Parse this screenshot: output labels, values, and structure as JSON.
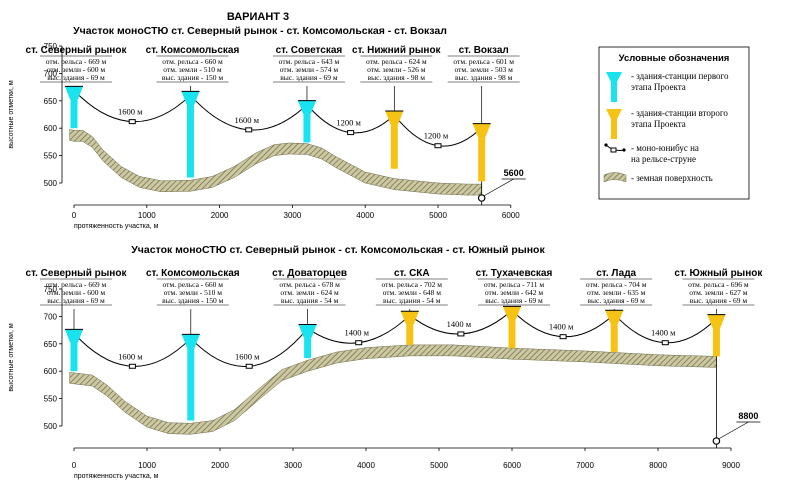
{
  "variant_title": "ВАРИАНТ 3",
  "legend": {
    "title": "Условные обозначения",
    "items": [
      {
        "kind": "tower-cyan",
        "lines": [
          "- здания-станции первого",
          "этапа Проекта"
        ]
      },
      {
        "kind": "tower-yellow",
        "lines": [
          "- здания-станции второго",
          "этапа Проекта"
        ]
      },
      {
        "kind": "cabin",
        "lines": [
          "- моно-юнибус на",
          "на рельсе-струне"
        ]
      },
      {
        "kind": "ground",
        "lines": [
          "- земная поверхность"
        ]
      }
    ]
  },
  "colors": {
    "stage1": "#19e3ee",
    "stage2": "#f6c214",
    "ground_fill": "#ccc8a2",
    "ground_edge": "#6e6a48"
  },
  "chart_data": [
    {
      "type": "diagram",
      "title": "Участок моноСТЮ ст. Северный рынок - ст. Комсомольская - ст. Вокзал",
      "ylabel": "высотные отметки, м",
      "xlabel": "протяженность участка, м",
      "y_ticks": [
        500,
        550,
        600,
        650,
        700,
        750
      ],
      "x_ticks": [
        0,
        1000,
        2000,
        3000,
        4000,
        5000,
        6000
      ],
      "ylim": [
        500,
        750
      ],
      "xlim": [
        0,
        6000
      ],
      "total_length": "5600",
      "total_length_m": 5600,
      "ground": [
        [
          -60,
          598
        ],
        [
          0,
          596
        ],
        [
          120,
          596
        ],
        [
          250,
          585
        ],
        [
          400,
          560
        ],
        [
          650,
          530
        ],
        [
          900,
          512
        ],
        [
          1200,
          504
        ],
        [
          1600,
          505
        ],
        [
          1900,
          512
        ],
        [
          2200,
          530
        ],
        [
          2500,
          555
        ],
        [
          2750,
          570
        ],
        [
          2950,
          573
        ],
        [
          3200,
          572
        ],
        [
          3400,
          564
        ],
        [
          3600,
          548
        ],
        [
          4000,
          520
        ],
        [
          4400,
          508
        ],
        [
          5000,
          500
        ],
        [
          5400,
          498
        ],
        [
          5600,
          498
        ]
      ],
      "stations": [
        {
          "name": "ст. Северный рынок",
          "x_m": 0,
          "rail": "отм. рельса - 669 м",
          "ground": "отм. земли - 600 м",
          "height": "выс. здания - 69 м",
          "rail_m": 669,
          "ground_m": 600,
          "stage": 1
        },
        {
          "name": "ст. Комсомольская",
          "x_m": 1600,
          "rail": "отм. рельса - 660 м",
          "ground": "отм. земли - 510 м",
          "height": "выс. здания - 150 м",
          "rail_m": 660,
          "ground_m": 510,
          "stage": 1
        },
        {
          "name": "ст. Советская",
          "x_m": 3200,
          "rail": "отм. рельса - 643 м",
          "ground": "отм. земли - 574 м",
          "height": "выс. здания - 69 м",
          "rail_m": 643,
          "ground_m": 574,
          "stage": 1
        },
        {
          "name": "ст. Нижний рынок",
          "x_m": 4400,
          "rail": "отм. рельса - 624 м",
          "ground": "отм. земли - 526 м",
          "height": "выс. здания - 98 м",
          "rail_m": 624,
          "ground_m": 526,
          "stage": 2
        },
        {
          "name": "ст. Вокзал",
          "x_m": 5600,
          "rail": "отм. рельса - 601 м",
          "ground": "отм. земли - 503 м",
          "height": "выс. здания - 98 м",
          "rail_m": 601,
          "ground_m": 503,
          "stage": 2
        }
      ],
      "spans": [
        {
          "label": "1600 м",
          "sag_m": 612
        },
        {
          "label": "1600 м",
          "sag_m": 597
        },
        {
          "label": "1200 м",
          "sag_m": 592
        },
        {
          "label": "1200 м",
          "sag_m": 568
        }
      ]
    },
    {
      "type": "diagram",
      "title": "Участок моноСТЮ ст. Северный рынок - ст. Комсомольская - ст. Южный рынок",
      "ylabel": "высотные отметки, м",
      "xlabel": "протяженность участка, м",
      "y_ticks": [
        500,
        550,
        600,
        650,
        700,
        750
      ],
      "x_ticks": [
        0,
        1000,
        2000,
        3000,
        4000,
        5000,
        6000,
        7000,
        8000,
        9000
      ],
      "ylim": [
        500,
        750
      ],
      "xlim": [
        0,
        9000
      ],
      "total_length": "8800",
      "total_length_m": 8800,
      "ground": [
        [
          -60,
          598
        ],
        [
          0,
          597
        ],
        [
          250,
          593
        ],
        [
          450,
          575
        ],
        [
          700,
          545
        ],
        [
          1000,
          518
        ],
        [
          1300,
          506
        ],
        [
          1600,
          505
        ],
        [
          1900,
          510
        ],
        [
          2200,
          530
        ],
        [
          2550,
          570
        ],
        [
          2850,
          603
        ],
        [
          3200,
          620
        ],
        [
          3600,
          635
        ],
        [
          4000,
          643
        ],
        [
          4600,
          648
        ],
        [
          5200,
          648
        ],
        [
          6000,
          642
        ],
        [
          7000,
          637
        ],
        [
          8000,
          630
        ],
        [
          8800,
          627
        ]
      ],
      "stations": [
        {
          "name": "ст. Северный рынок",
          "x_m": 0,
          "rail": "отм. рельса - 669 м",
          "ground": "отм. земли - 600 м",
          "height": "выс. здания - 69 м",
          "rail_m": 669,
          "ground_m": 600,
          "stage": 1
        },
        {
          "name": "ст. Комсомольская",
          "x_m": 1600,
          "rail": "отм. рельса - 660 м",
          "ground": "отм. земли - 510 м",
          "height": "выс. здания - 150 м",
          "rail_m": 660,
          "ground_m": 510,
          "stage": 1
        },
        {
          "name": "ст. Доваторцев",
          "x_m": 3200,
          "rail": "отм. рельса - 678 м",
          "ground": "отм. земли - 624 м",
          "height": "выс. здания - 54 м",
          "rail_m": 678,
          "ground_m": 624,
          "stage": 1
        },
        {
          "name": "ст. СКА",
          "x_m": 4600,
          "rail": "отм. рельса - 702 м",
          "ground": "отм. земли - 648 м",
          "height": "выс. здания - 54 м",
          "rail_m": 702,
          "ground_m": 648,
          "stage": 2
        },
        {
          "name": "ст. Тухачевская",
          "x_m": 6000,
          "rail": "отм. рельса - 711 м",
          "ground": "отм. земли - 642 м",
          "height": "выс. здания - 69 м",
          "rail_m": 711,
          "ground_m": 642,
          "stage": 2
        },
        {
          "name": "ст. Лада",
          "x_m": 7400,
          "rail": "отм. рельса - 704 м",
          "ground": "отм. земли - 635 м",
          "height": "выс. здания - 69 м",
          "rail_m": 704,
          "ground_m": 635,
          "stage": 2
        },
        {
          "name": "ст. Южный рынок",
          "x_m": 8800,
          "rail": "отм. рельса - 696 м",
          "ground": "отм. земли - 627 м",
          "height": "выс. здания - 69 м",
          "rail_m": 696,
          "ground_m": 627,
          "stage": 2
        }
      ],
      "spans": [
        {
          "label": "1600 м",
          "sag_m": 609
        },
        {
          "label": "1600 м",
          "sag_m": 609
        },
        {
          "label": "1400 м",
          "sag_m": 652
        },
        {
          "label": "1400 м",
          "sag_m": 668
        },
        {
          "label": "1400 м",
          "sag_m": 663
        },
        {
          "label": "1400 м",
          "sag_m": 652
        }
      ]
    }
  ]
}
